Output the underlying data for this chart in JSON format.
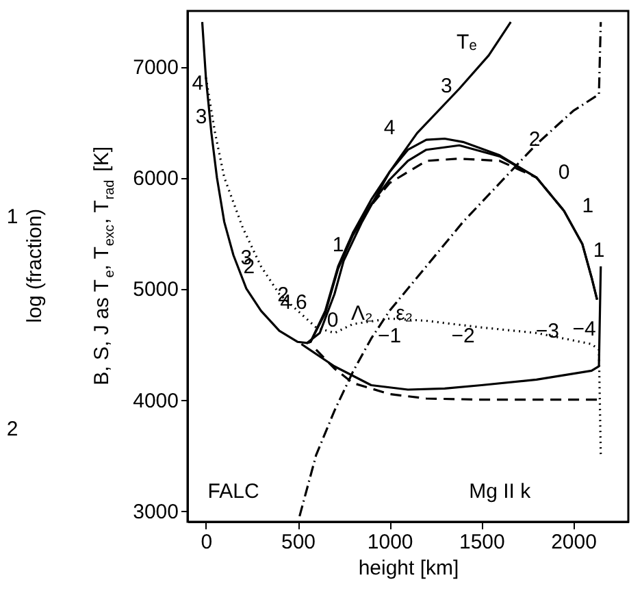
{
  "chart_data": {
    "type": "line",
    "xlabel": "height  [km]",
    "ylabel": "B, S, J as T$_{e}$, T$_{exc}$, T$_{rad}$ [K]",
    "xlim": [
      -100,
      2300
    ],
    "ylim": [
      2900,
      7500
    ],
    "xticks": [
      0,
      500,
      1000,
      1500,
      2000
    ],
    "yticks": [
      3000,
      4000,
      5000,
      6000,
      7000
    ],
    "grid": false,
    "marker": "none",
    "series": [
      {
        "color": "#000000",
        "line_style": "solid",
        "x": [
          -20,
          0,
          30,
          60,
          100,
          150,
          220,
          300,
          400,
          500,
          550,
          620,
          700,
          750,
          850,
          1000,
          1150,
          1380,
          1540,
          1660
        ],
        "values": [
          7400,
          6900,
          6400,
          6000,
          5600,
          5300,
          5000,
          4800,
          4620,
          4520,
          4510,
          4600,
          4950,
          5250,
          5600,
          6050,
          6400,
          6800,
          7100,
          7400
        ]
      },
      {
        "color": "#000000",
        "line_style": "solid",
        "x": [
          550,
          570,
          650,
          720,
          800,
          900,
          1000,
          1100,
          1200,
          1300,
          1400,
          1600,
          1800,
          1950,
          2050,
          2100,
          2130
        ],
        "values": [
          4510,
          4520,
          4800,
          5200,
          5500,
          5800,
          6050,
          6250,
          6340,
          6350,
          6320,
          6200,
          6000,
          5700,
          5400,
          5100,
          4900
        ]
      },
      {
        "color": "#000000",
        "line_style": "solid",
        "x": [
          550,
          570,
          650,
          720,
          800,
          900,
          1000,
          1100,
          1200,
          1380,
          1600,
          1800,
          1950,
          2050,
          2100,
          2130
        ],
        "values": [
          4510,
          4520,
          4780,
          5180,
          5480,
          5760,
          5980,
          6150,
          6250,
          6290,
          6190,
          6000,
          5700,
          5400,
          5100,
          4900
        ]
      },
      {
        "color": "#000000",
        "line_style": "dashed",
        "x": [
          800,
          900,
          1000,
          1200,
          1380,
          1600,
          1800,
          1950
        ],
        "values": [
          5500,
          5750,
          5950,
          6150,
          6170,
          6150,
          6000,
          5700
        ]
      },
      {
        "color": "#000000",
        "line_style": "dashed",
        "x": [
          600,
          700,
          800,
          1000,
          1200,
          1500,
          2150
        ],
        "values": [
          4450,
          4280,
          4150,
          4050,
          4010,
          4000,
          4000
        ]
      },
      {
        "color": "#000000",
        "line_style": "solid",
        "x": [
          520,
          700,
          900,
          1100,
          1300,
          1500,
          1800,
          2100,
          2140,
          2150
        ],
        "values": [
          4500,
          4300,
          4130,
          4090,
          4100,
          4130,
          4180,
          4260,
          4300,
          5200
        ]
      },
      {
        "color": "#000000",
        "line_style": "dotted",
        "x": [
          0,
          50,
          100,
          200,
          300,
          400,
          500,
          600,
          700,
          800,
          1000,
          1200,
          1500,
          1800,
          2100,
          2140,
          2150
        ],
        "values": [
          6900,
          6400,
          6000,
          5550,
          5200,
          4950,
          4800,
          4650,
          4600,
          4680,
          4730,
          4710,
          4650,
          4600,
          4500,
          4450,
          3500
        ]
      },
      {
        "color": "#000000",
        "line_style": "dashdot",
        "x": [
          510,
          600,
          700,
          800,
          900,
          1000,
          1200,
          1400,
          1600,
          1800,
          2000,
          2140,
          2150
        ],
        "values": [
          2950,
          3500,
          3900,
          4250,
          4550,
          4800,
          5200,
          5600,
          5950,
          6300,
          6600,
          6750,
          7400
        ]
      }
    ],
    "annotations": [
      "Tₑ",
      "Λ₂",
      "ε₂",
      "FALC",
      "Mg II k",
      "4",
      "3",
      "3",
      "2",
      "2",
      "4",
      "6",
      "0",
      "1",
      "4",
      "3",
      "2",
      "0",
      "1",
      "1",
      "−1",
      "−2",
      "−3",
      "−4",
      "log (fraction)",
      "1",
      "2"
    ]
  }
}
